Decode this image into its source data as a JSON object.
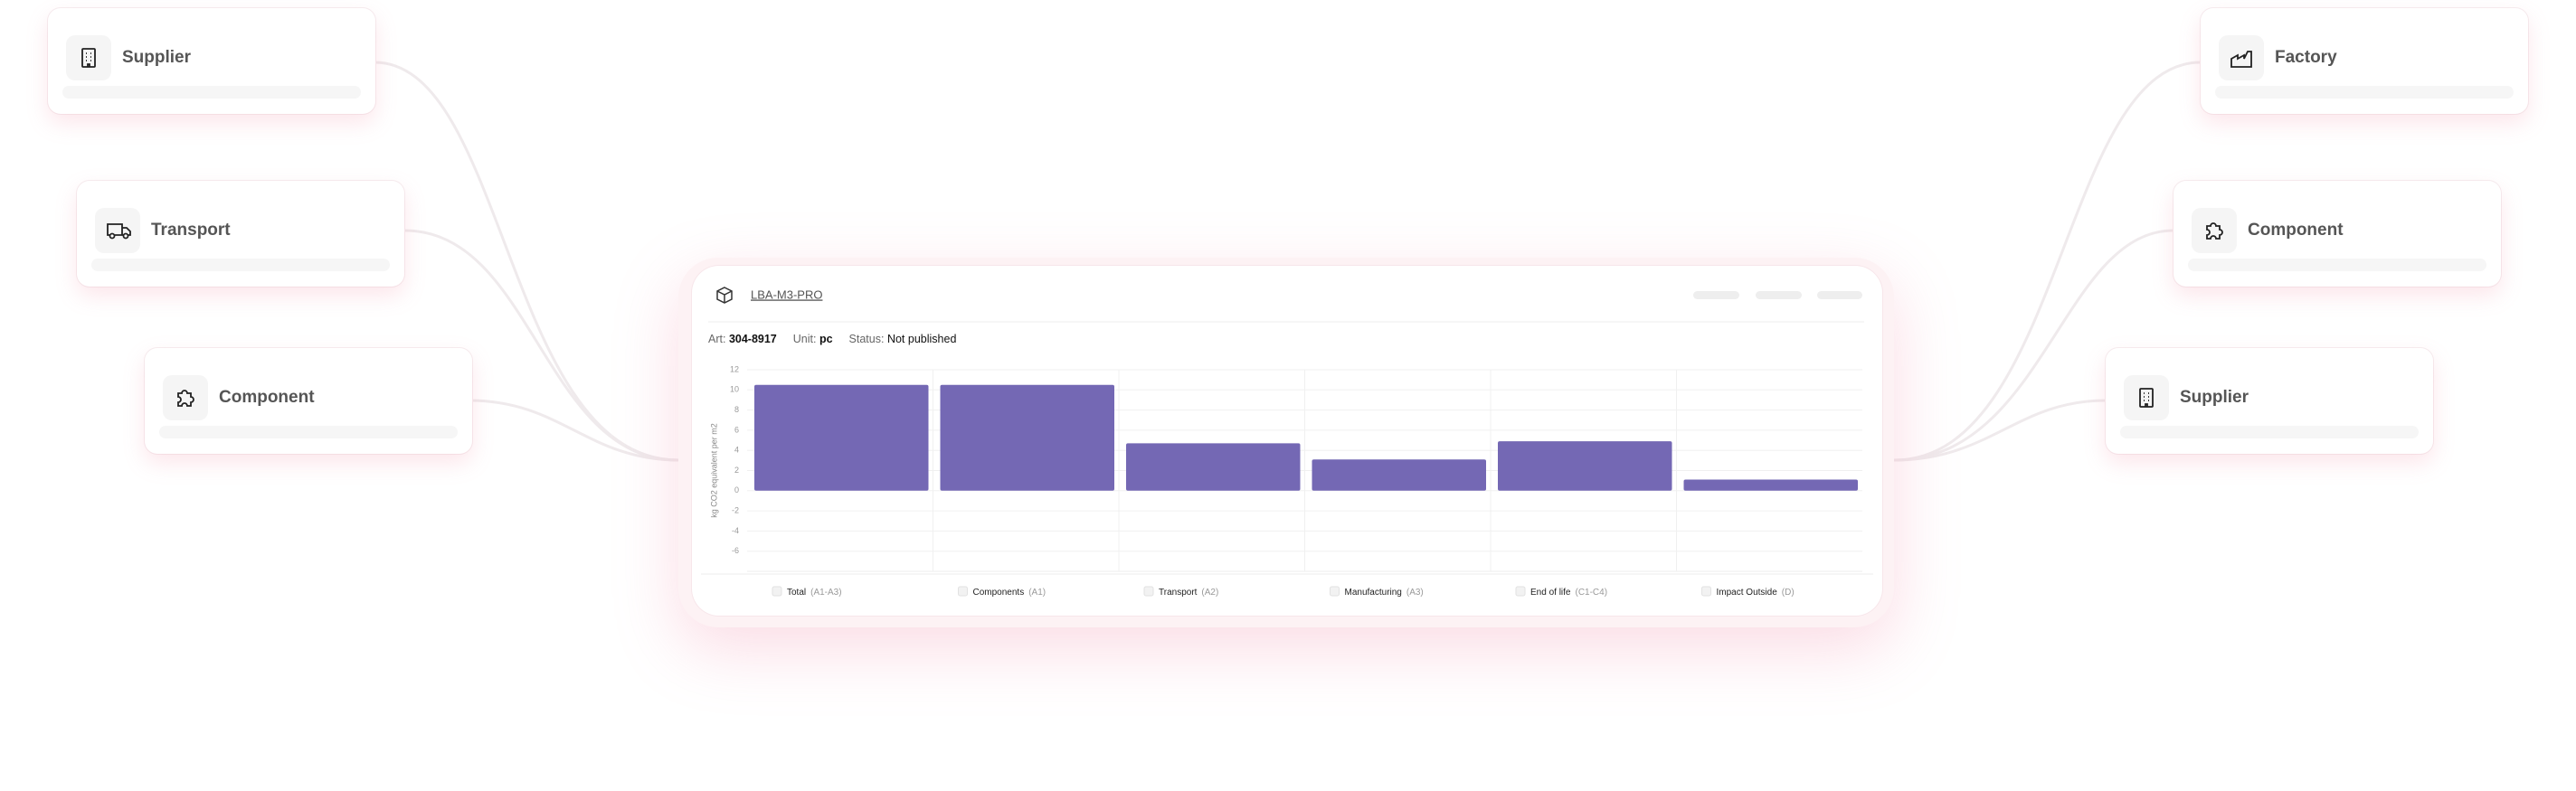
{
  "nodes_left": [
    {
      "label": "Supplier"
    },
    {
      "label": "Transport"
    },
    {
      "label": "Component"
    }
  ],
  "nodes_right": [
    {
      "label": "Factory"
    },
    {
      "label": "Component"
    },
    {
      "label": "Supplier"
    }
  ],
  "product": {
    "name": "LBA-M3-PRO",
    "art_label": "Art:",
    "art": "304-8917",
    "unit_label": "Unit:",
    "unit": "pc",
    "status_label": "Status:",
    "status": "Not published"
  },
  "chart_data": {
    "type": "bar",
    "y_label": "kg CO2 equivalent per m2",
    "categories": [
      "Total",
      "Components",
      "Transport",
      "Manufacturing",
      "End of life",
      "Impact Outside"
    ],
    "category_codes": [
      "(A1-A3)",
      "(A1)",
      "(A2)",
      "(A3)",
      "(C1-C4)",
      "(D)"
    ],
    "values": [
      10.5,
      10.5,
      4.7,
      3.1,
      4.9,
      1.1
    ],
    "color": "#7468b4",
    "ylim": [
      -8,
      12
    ],
    "yticks": [
      12,
      10,
      8,
      6,
      4,
      2,
      0,
      -2,
      -4,
      -6
    ],
    "grid": true
  }
}
